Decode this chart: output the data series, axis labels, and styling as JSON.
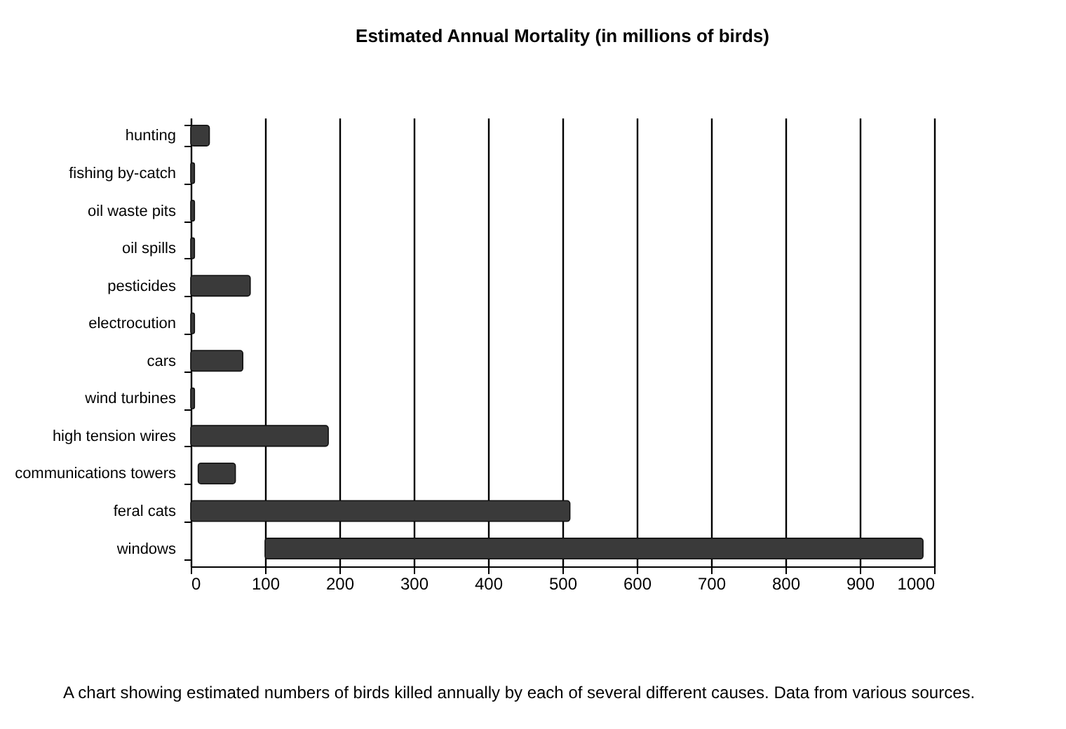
{
  "chart_data": {
    "type": "bar",
    "orientation": "horizontal",
    "title": "Estimated Annual Mortality (in millions of birds)",
    "categories": [
      "hunting",
      "fishing by-catch",
      "oil waste pits",
      "oil spills",
      "pesticides",
      "electrocution",
      "cars",
      "wind turbines",
      "high tension wires",
      "communications towers",
      "feral cats",
      "windows"
    ],
    "values": [
      25,
      5,
      5,
      5,
      80,
      5,
      70,
      5,
      185,
      50,
      510,
      885
    ],
    "base": [
      0,
      0,
      0,
      0,
      0,
      0,
      0,
      0,
      0,
      10,
      0,
      100
    ],
    "color": "#3a3a3a",
    "xlim": [
      0,
      1000
    ],
    "xticks": [
      0,
      100,
      200,
      300,
      400,
      500,
      600,
      700,
      800,
      900,
      1000
    ],
    "grid": "x",
    "annotations": [
      "A chart showing estimated numbers of birds killed annually by each of several different causes. Data from various sources."
    ]
  }
}
